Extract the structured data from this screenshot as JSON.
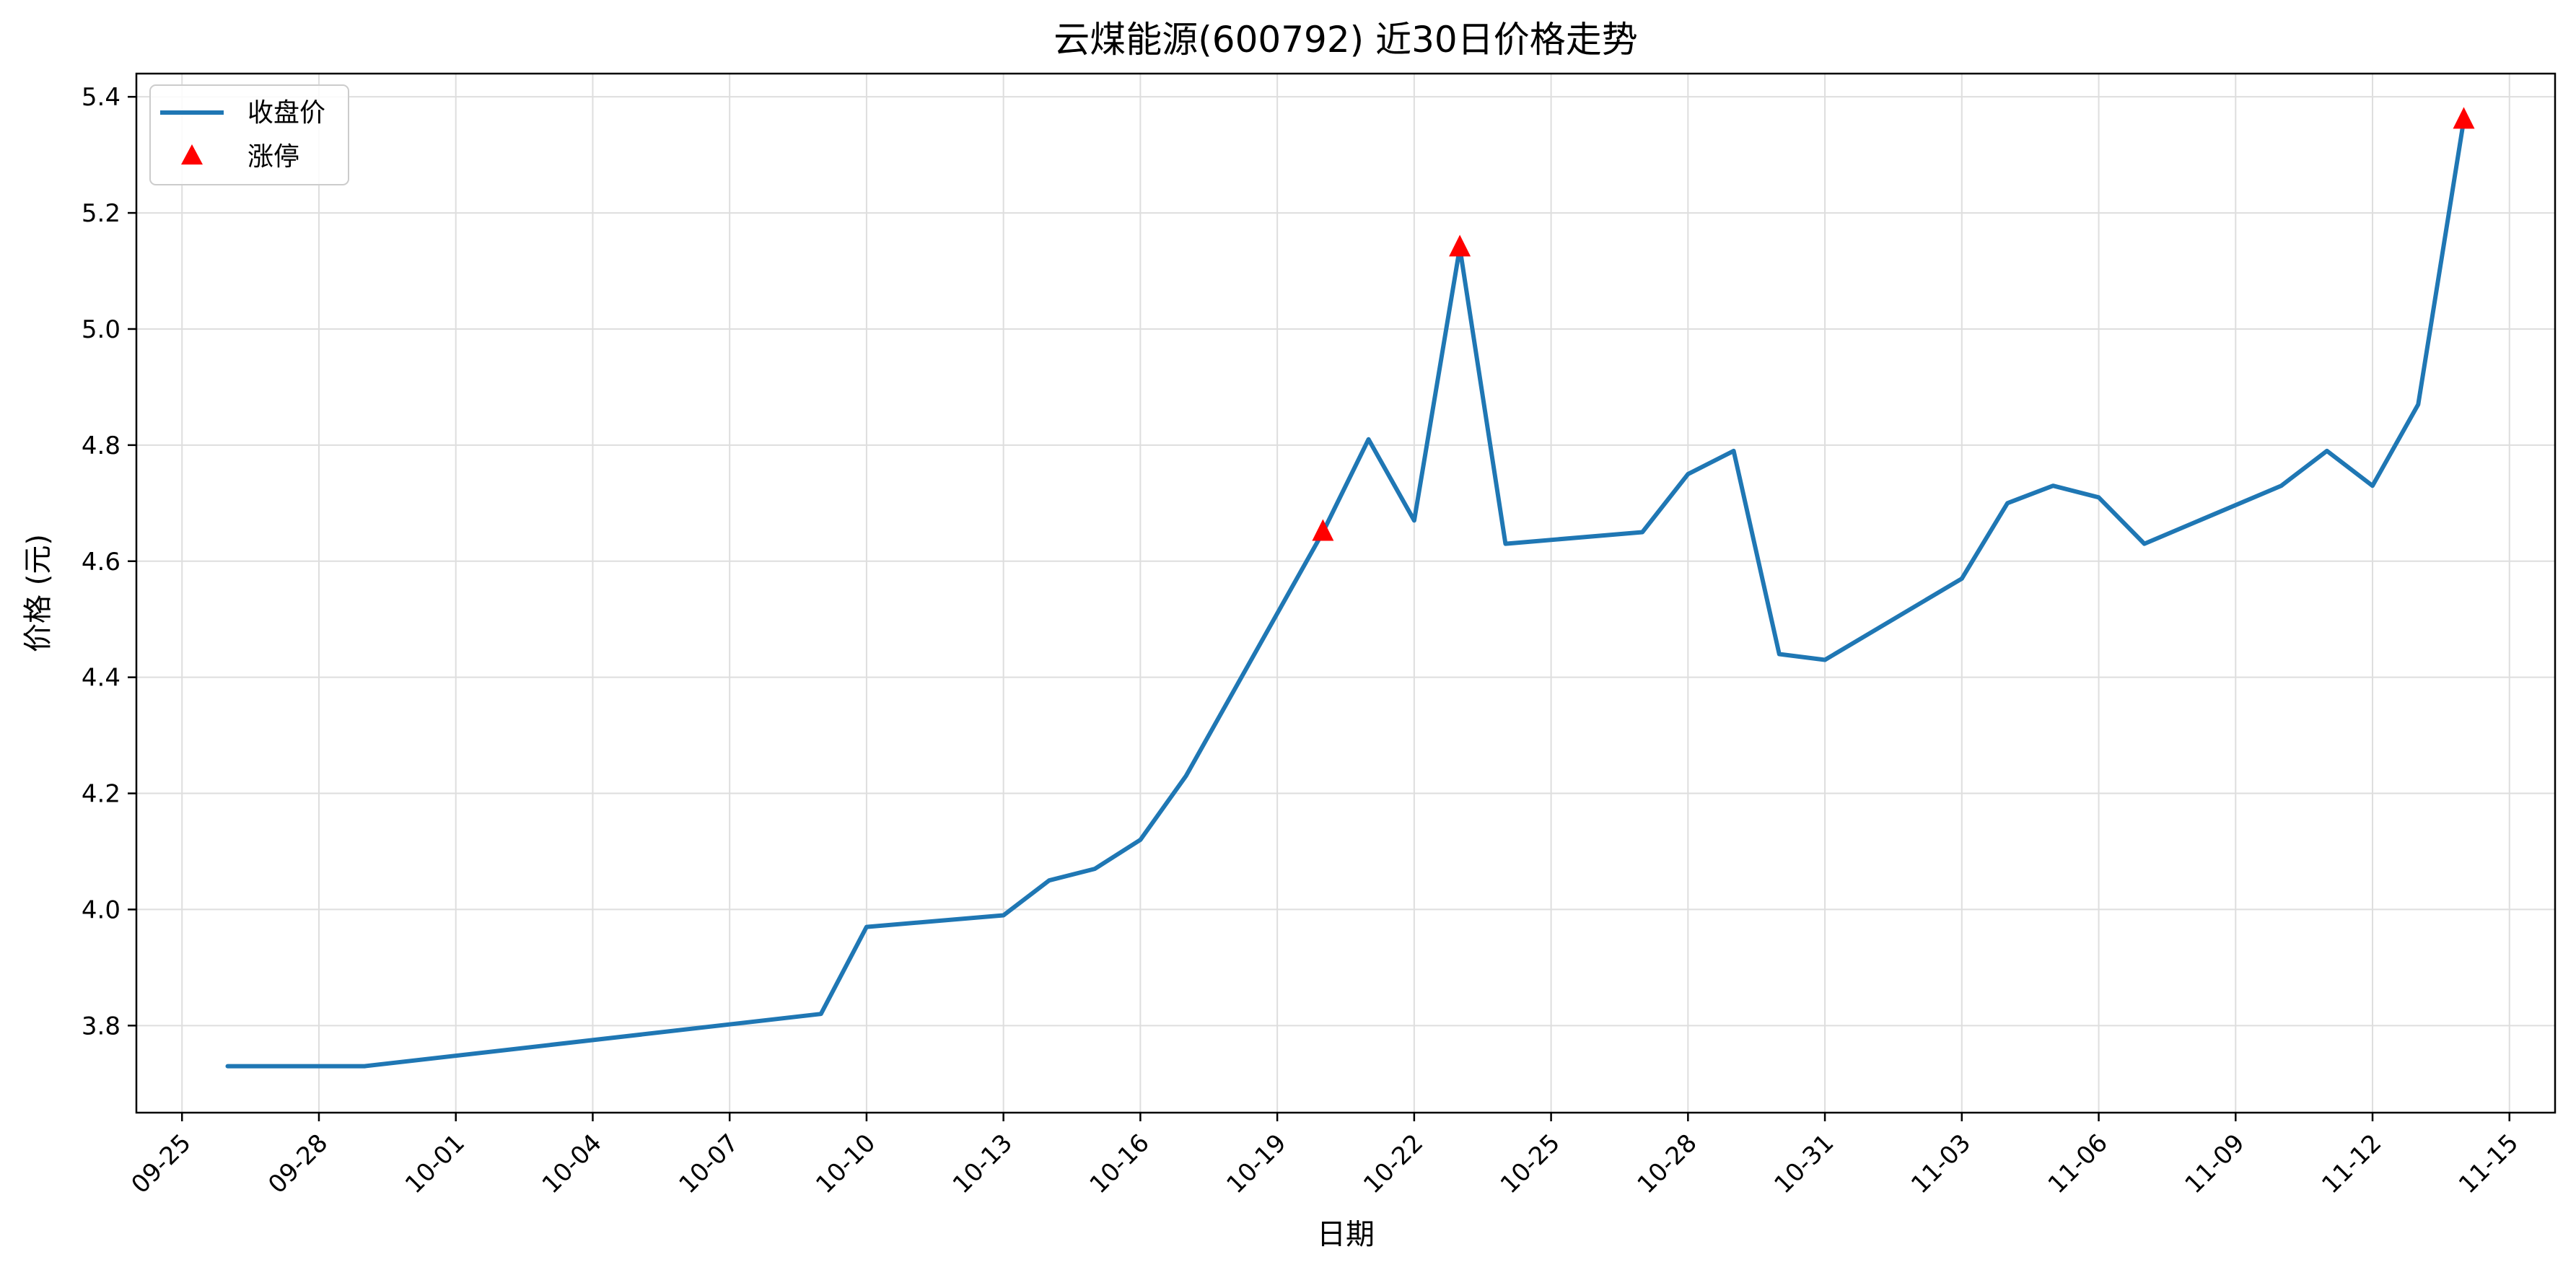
{
  "chart_data": {
    "type": "line",
    "title": "云煤能源(600792) 近30日价格走势",
    "xlabel": "日期",
    "ylabel": "价格 (元)",
    "ylim": [
      3.65,
      5.44
    ],
    "xlim": [
      "2025-09-24",
      "2025-11-16"
    ],
    "yticks": [
      3.8,
      4.0,
      4.2,
      4.4,
      4.6,
      4.8,
      5.0,
      5.2,
      5.4
    ],
    "ytick_labels": [
      "3.8",
      "4.0",
      "4.2",
      "4.4",
      "4.6",
      "4.8",
      "5.0",
      "5.2",
      "5.4"
    ],
    "xticks": [
      "2025-09-25",
      "2025-09-28",
      "2025-10-01",
      "2025-10-04",
      "2025-10-07",
      "2025-10-10",
      "2025-10-13",
      "2025-10-16",
      "2025-10-19",
      "2025-10-22",
      "2025-10-25",
      "2025-10-28",
      "2025-10-31",
      "2025-11-03",
      "2025-11-06",
      "2025-11-09",
      "2025-11-12",
      "2025-11-15"
    ],
    "xtick_labels": [
      "09-25",
      "09-28",
      "10-01",
      "10-04",
      "10-07",
      "10-10",
      "10-13",
      "10-16",
      "10-19",
      "10-22",
      "10-25",
      "10-28",
      "10-31",
      "11-03",
      "11-06",
      "11-09",
      "11-12",
      "11-15"
    ],
    "grid": true,
    "legend_position": "upper-left",
    "series": [
      {
        "name": "收盘价",
        "type": "line",
        "color": "#1f77b4",
        "x": [
          "2025-09-26",
          "2025-09-29",
          "2025-10-09",
          "2025-10-10",
          "2025-10-13",
          "2025-10-14",
          "2025-10-15",
          "2025-10-16",
          "2025-10-17",
          "2025-10-20",
          "2025-10-21",
          "2025-10-22",
          "2025-10-23",
          "2025-10-24",
          "2025-10-27",
          "2025-10-28",
          "2025-10-29",
          "2025-10-30",
          "2025-10-31",
          "2025-11-03",
          "2025-11-04",
          "2025-11-05",
          "2025-11-06",
          "2025-11-07",
          "2025-11-10",
          "2025-11-11",
          "2025-11-12",
          "2025-11-13",
          "2025-11-14"
        ],
        "y": [
          3.73,
          3.73,
          3.82,
          3.97,
          3.99,
          4.05,
          4.07,
          4.12,
          4.23,
          4.65,
          4.81,
          4.67,
          5.14,
          4.63,
          4.65,
          4.75,
          4.79,
          4.44,
          4.43,
          4.57,
          4.7,
          4.73,
          4.71,
          4.63,
          4.73,
          4.79,
          4.73,
          4.87,
          5.36
        ]
      },
      {
        "name": "涨停",
        "type": "scatter",
        "marker": "triangle",
        "color": "#ff0000",
        "x": [
          "2025-10-20",
          "2025-10-23",
          "2025-11-14"
        ],
        "y": [
          4.65,
          5.14,
          5.36
        ]
      }
    ]
  }
}
